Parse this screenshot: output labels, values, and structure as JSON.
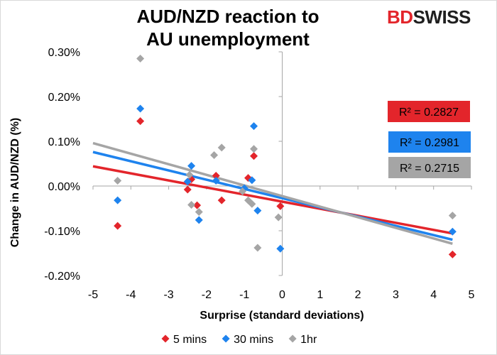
{
  "title_line1": "AUD/NZD reaction to",
  "title_line2": "AU unemployment",
  "logo": {
    "part1": "BD",
    "part2": "SWISS",
    "accent": "#e3252b",
    "dark": "#1f1f1f"
  },
  "chart_data": {
    "type": "scatter",
    "xlabel": "Surprise (standard deviations)",
    "ylabel": "Change in AUD/NZD (%)",
    "xlim": [
      -5,
      5
    ],
    "ylim": [
      -0.2,
      0.3
    ],
    "xticks": [
      "-5",
      "-4",
      "-3",
      "-2",
      "-1",
      "0",
      "1",
      "2",
      "3",
      "4",
      "5"
    ],
    "yticks": [
      "-0.20%",
      "-0.10%",
      "0.00%",
      "0.10%",
      "0.20%",
      "0.30%"
    ],
    "grid": false,
    "legend": "bottom",
    "series": [
      {
        "name": "5 mins",
        "color": "#e3252b",
        "marker": "diamond",
        "points": [
          [
            -4.35,
            -0.089
          ],
          [
            -3.75,
            0.145
          ],
          [
            -2.5,
            -0.008
          ],
          [
            -2.4,
            0.015
          ],
          [
            -2.25,
            -0.043
          ],
          [
            -1.75,
            0.023
          ],
          [
            -1.6,
            -0.032
          ],
          [
            -0.9,
            0.018
          ],
          [
            -0.75,
            0.067
          ],
          [
            -0.05,
            -0.045
          ],
          [
            4.5,
            -0.153
          ]
        ],
        "r2_label": "R² = 0.2827",
        "trend": [
          [
            -5,
            0.044
          ],
          [
            4.5,
            -0.106
          ]
        ]
      },
      {
        "name": "30 mins",
        "color": "#1e83ee",
        "marker": "diamond",
        "points": [
          [
            -4.35,
            -0.032
          ],
          [
            -3.75,
            0.173
          ],
          [
            -2.5,
            0.01
          ],
          [
            -2.4,
            0.045
          ],
          [
            -2.2,
            -0.076
          ],
          [
            -1.75,
            0.012
          ],
          [
            -1.0,
            -0.005
          ],
          [
            -0.8,
            0.013
          ],
          [
            -0.75,
            0.134
          ],
          [
            -0.65,
            -0.055
          ],
          [
            -0.05,
            -0.14
          ],
          [
            4.5,
            -0.102
          ]
        ],
        "r2_label": "R² = 0.2981",
        "trend": [
          [
            -5,
            0.076
          ],
          [
            4.5,
            -0.12
          ]
        ]
      },
      {
        "name": "1hr",
        "color": "#a5a5a5",
        "marker": "diamond",
        "points": [
          [
            -4.35,
            0.012
          ],
          [
            -3.75,
            0.285
          ],
          [
            -2.45,
            0.025
          ],
          [
            -2.4,
            -0.042
          ],
          [
            -2.2,
            -0.058
          ],
          [
            -1.8,
            0.069
          ],
          [
            -1.6,
            0.086
          ],
          [
            -1.05,
            -0.012
          ],
          [
            -0.9,
            -0.032
          ],
          [
            -0.75,
            0.083
          ],
          [
            -0.8,
            -0.04
          ],
          [
            -0.65,
            -0.138
          ],
          [
            -0.1,
            -0.07
          ],
          [
            4.5,
            -0.066
          ]
        ],
        "r2_label": "R² = 0.2715",
        "trend": [
          [
            -5,
            0.096
          ],
          [
            4.5,
            -0.129
          ]
        ]
      }
    ]
  }
}
